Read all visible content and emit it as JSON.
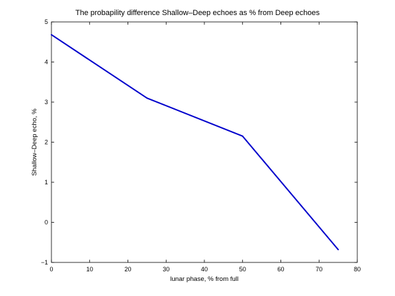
{
  "chart_data": {
    "type": "line",
    "title": "The probapility difference Shallow–Deep echoes as % from Deep echoes",
    "xlabel": "lunar phase, % from full",
    "ylabel": "Shallow–Deep echo, %",
    "xlim": [
      0,
      80
    ],
    "ylim": [
      -1,
      5
    ],
    "xticks": [
      "0",
      "10",
      "20",
      "30",
      "40",
      "50",
      "60",
      "70",
      "80"
    ],
    "yticks": [
      "−1",
      "0",
      "1",
      "2",
      "3",
      "4",
      "5"
    ],
    "grid": false,
    "series": [
      {
        "color": "#0000cc",
        "x": [
          0,
          25,
          50,
          75
        ],
        "y": [
          4.68,
          3.1,
          2.15,
          -0.68
        ]
      }
    ]
  }
}
